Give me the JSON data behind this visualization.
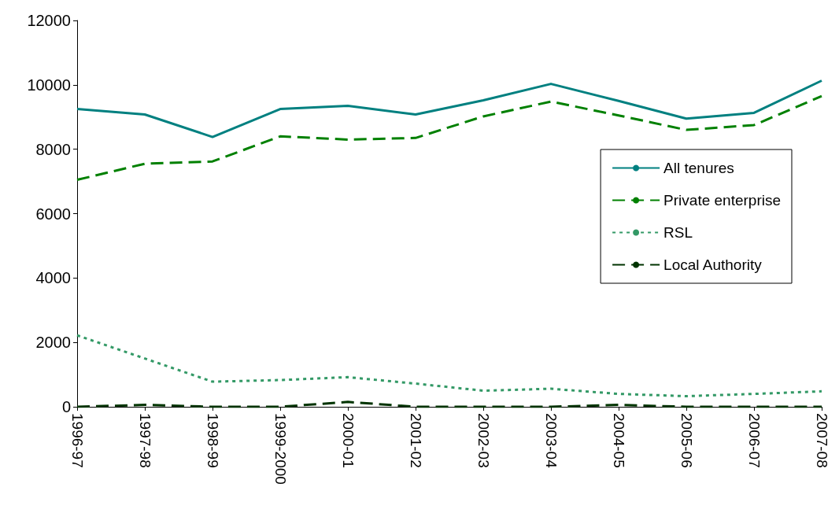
{
  "chart_data": {
    "type": "line",
    "categories": [
      "1996-97",
      "1997-98",
      "1998-99",
      "1999-2000",
      "2000-01",
      "2001-02",
      "2002-03",
      "2003-04",
      "2004-05",
      "2005-06",
      "2006-07",
      "2007-08"
    ],
    "series": [
      {
        "name": "All tenures",
        "color": "#008080",
        "line_style": "solid",
        "values": [
          9250,
          9080,
          8380,
          9250,
          9350,
          9080,
          9520,
          10030,
          9500,
          8950,
          9130,
          10130
        ]
      },
      {
        "name": "Private enterprise",
        "color": "#008000",
        "line_style": "dashed",
        "values": [
          7050,
          7550,
          7620,
          8400,
          8300,
          8350,
          9020,
          9480,
          9050,
          8600,
          8750,
          9650
        ]
      },
      {
        "name": "RSL",
        "color": "#339966",
        "line_style": "dotted",
        "values": [
          2220,
          1500,
          780,
          830,
          920,
          720,
          500,
          560,
          400,
          330,
          400,
          480
        ]
      },
      {
        "name": "Local Authority",
        "color": "#003300",
        "line_style": "dashed",
        "values": [
          0,
          60,
          0,
          0,
          150,
          0,
          0,
          0,
          60,
          0,
          0,
          0
        ]
      }
    ],
    "ylim": [
      0,
      12000
    ],
    "yticks": [
      0,
      2000,
      4000,
      6000,
      8000,
      10000,
      12000
    ],
    "grid": false,
    "legend": "right",
    "marker": "none"
  }
}
